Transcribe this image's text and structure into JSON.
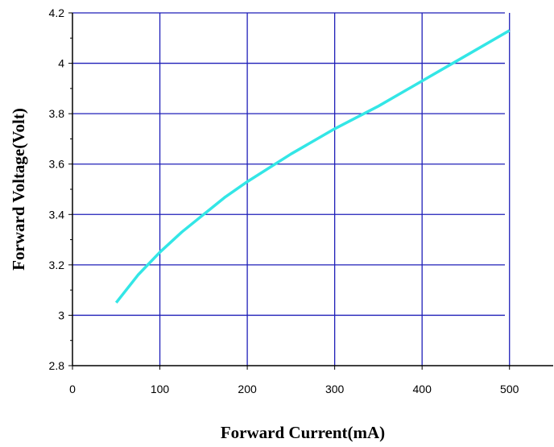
{
  "chart_data": {
    "type": "line",
    "title": "",
    "xlabel": "Forward Current(mA)",
    "ylabel": "Forward Voltage(Volt)",
    "xlim": [
      0,
      550
    ],
    "ylim": [
      2.8,
      4.2
    ],
    "x_ticks": [
      "0",
      "100",
      "200",
      "300",
      "400",
      "500"
    ],
    "y_ticks": [
      "2.8",
      "3",
      "3.2",
      "3.4",
      "3.6",
      "3.8",
      "4",
      "4.2"
    ],
    "grid": true,
    "legend": "none",
    "colors": {
      "line": "#33e6e6",
      "grid": "#1f1fb8",
      "axis": "#000000",
      "background": "#ffffff"
    },
    "series": [
      {
        "x": [
          50,
          75,
          100,
          125,
          150,
          175,
          200,
          250,
          300,
          350,
          400,
          450,
          500
        ],
        "y": [
          3.05,
          3.16,
          3.25,
          3.33,
          3.4,
          3.47,
          3.53,
          3.64,
          3.74,
          3.83,
          3.93,
          4.03,
          4.13
        ]
      }
    ]
  }
}
